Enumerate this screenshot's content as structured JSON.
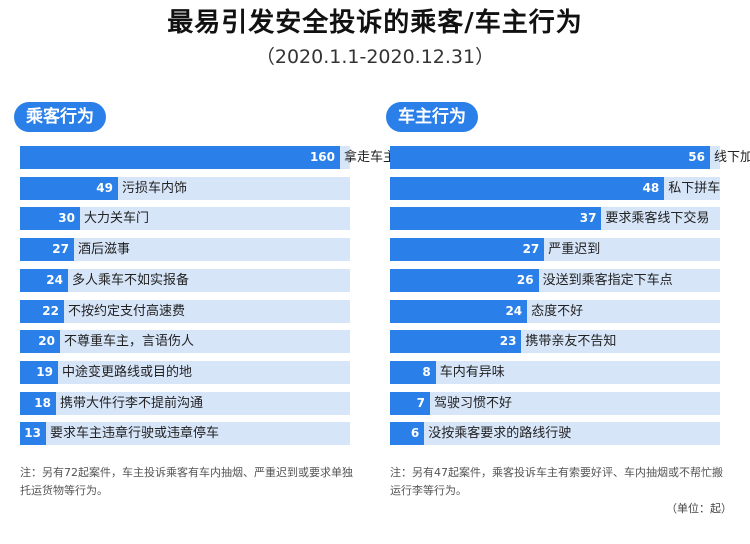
{
  "header": {
    "title": "最易引发安全投诉的乘客/车主行为",
    "subtitle": "（2020.1.1-2020.12.31）"
  },
  "colors": {
    "accent": "#2a7fe8",
    "track": "#d7e5f9"
  },
  "chart_data": [
    {
      "type": "bar",
      "orientation": "horizontal",
      "title": "乘客行为",
      "categories": [
        "拿走车主随用物品",
        "污损车内饰",
        "大力关车门",
        "酒后滋事",
        "多人乘车不如实报备",
        "不按约定支付高速费",
        "不尊重车主，言语伤人",
        "中途变更路线或目的地",
        "携带大件行李不提前沟通",
        "要求车主违章行驶或违章停车"
      ],
      "values": [
        160,
        49,
        30,
        27,
        24,
        22,
        20,
        19,
        18,
        13
      ],
      "note": "注：另有72起案件，车主投诉乘客有车内抽烟、严重迟到或要求单独托运货物等行为。"
    },
    {
      "type": "bar",
      "orientation": "horizontal",
      "title": "车主行为",
      "categories": [
        "线下加价",
        "私下拼车",
        "要求乘客线下交易",
        "严重迟到",
        "没送到乘客指定下车点",
        "态度不好",
        "携带亲友不告知",
        "车内有异味",
        "驾驶习惯不好",
        "没按乘客要求的路线行驶"
      ],
      "values": [
        56,
        48,
        37,
        27,
        26,
        24,
        23,
        8,
        7,
        6
      ],
      "note": "注：另有47起案件，乘客投诉车主有索要好评、车内抽烟或不帮忙搬运行李等行为。",
      "unit": "（单位：起）"
    }
  ]
}
